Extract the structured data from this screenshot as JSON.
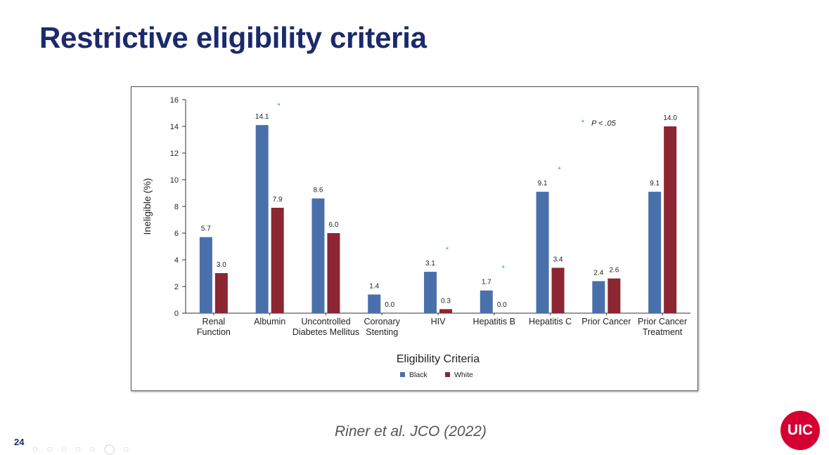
{
  "slide": {
    "title": "Restrictive eligibility criteria",
    "citation": "Riner et al. JCO (2022)",
    "page_number": "24",
    "nav_glyphs": "○ ○ ○ ○ ○ ◯ ○",
    "logo_text": "UIC"
  },
  "colors": {
    "black_series": "#4a70ac",
    "white_series": "#8b2632",
    "significance": "#2aa8a0",
    "title": "#1b2a6b",
    "logo": "#d50032"
  },
  "chart_data": {
    "type": "bar",
    "title": "",
    "xlabel": "Eligibility Criteria",
    "ylabel": "Ineligible (%)",
    "ylim": [
      0,
      16
    ],
    "yticks": [
      0,
      2,
      4,
      6,
      8,
      10,
      12,
      14,
      16
    ],
    "grid": false,
    "legend_position": "bottom",
    "significance_note": {
      "symbol": "*",
      "text": "P < .05"
    },
    "categories": [
      [
        "Renal",
        "Function"
      ],
      [
        "Albumin"
      ],
      [
        "Uncontrolled",
        "Diabetes Mellitus"
      ],
      [
        "Coronary",
        "Stenting"
      ],
      [
        "HIV"
      ],
      [
        "Hepatitis B"
      ],
      [
        "Hepatitis C"
      ],
      [
        "Prior Cancer"
      ],
      [
        "Prior Cancer",
        "Treatment"
      ]
    ],
    "significant": [
      false,
      true,
      false,
      false,
      true,
      true,
      true,
      false,
      false
    ],
    "series": [
      {
        "name": "Black",
        "values": [
          5.7,
          14.1,
          8.6,
          1.4,
          3.1,
          1.7,
          9.1,
          2.4,
          9.1
        ],
        "labels": [
          "5.7",
          "14.1",
          "8.6",
          "1.4",
          "3.1",
          "1.7",
          "9.1",
          "2.4",
          "9.1"
        ]
      },
      {
        "name": "White",
        "values": [
          3.0,
          7.9,
          6.0,
          0.0,
          0.3,
          0.0,
          3.4,
          2.6,
          14.0
        ],
        "labels": [
          "3.0",
          "7.9",
          "6.0",
          "0.0",
          "0.3",
          "0.0",
          "3.4",
          "2.6",
          "14.0"
        ]
      }
    ]
  }
}
